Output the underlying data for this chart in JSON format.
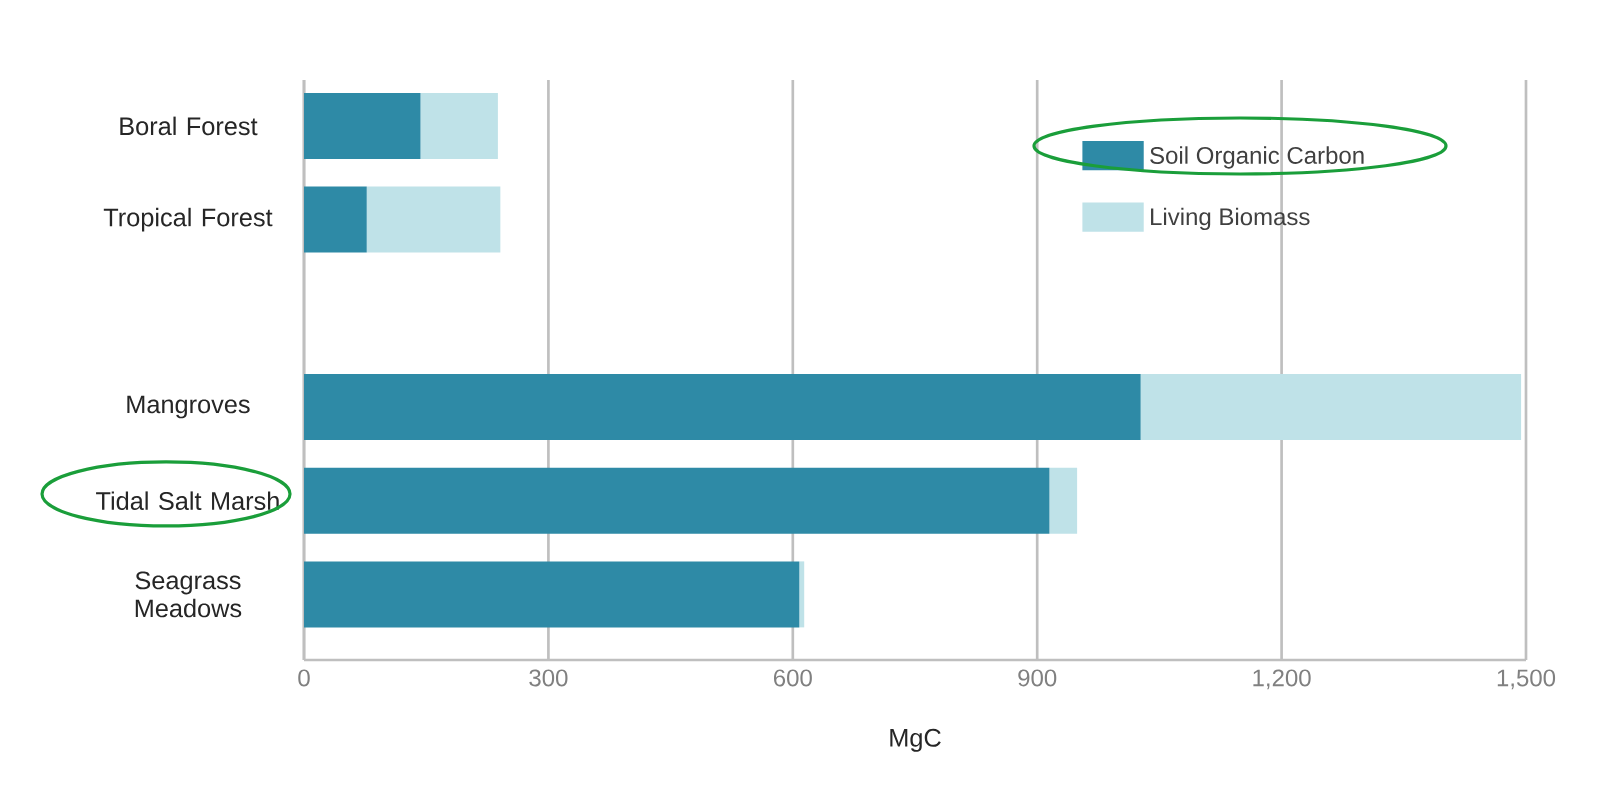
{
  "chart_data": {
    "type": "bar",
    "orientation": "horizontal",
    "stacked": true,
    "categories": [
      "Boral Forest",
      "Tropical Forest",
      null,
      "Mangroves",
      "Tidal Salt Marsh",
      "Seagrass Meadows"
    ],
    "series": [
      {
        "name": "Soil Organic Carbon",
        "color": "#2e8aa6",
        "values": [
          143,
          77,
          null,
          1027,
          915,
          608
        ]
      },
      {
        "name": "Living Biomass",
        "color": "#bfe2e8",
        "values": [
          95,
          164,
          null,
          467,
          34,
          6
        ]
      }
    ],
    "xlabel": "MgC",
    "xlim": [
      0,
      1500
    ],
    "xticks": [
      0,
      300,
      600,
      900,
      {
        "value": 1200,
        "label": "1,200"
      },
      {
        "value": 1500,
        "label": "1,500"
      }
    ],
    "grid": "x",
    "legend": "top right"
  }
}
